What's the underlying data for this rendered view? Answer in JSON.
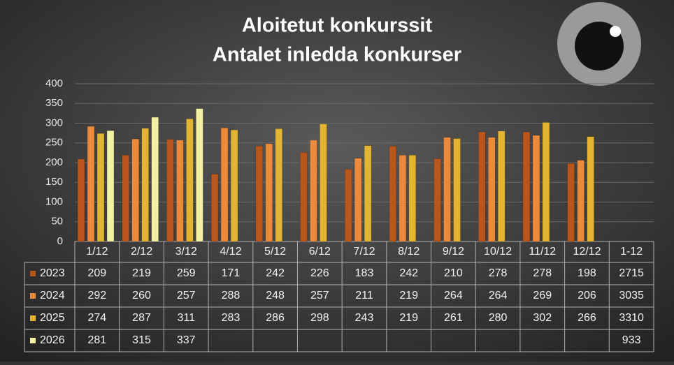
{
  "chart_data": {
    "type": "bar",
    "title": "Aloitetut konkurssit",
    "subtitle": "Antalet inledda konkurser",
    "categories": [
      "1/12",
      "2/12",
      "3/12",
      "4/12",
      "5/12",
      "6/12",
      "7/12",
      "8/12",
      "9/12",
      "10/12",
      "11/12",
      "12/12"
    ],
    "series": [
      {
        "name": "2023",
        "color": "#b8561c",
        "values": [
          209,
          219,
          259,
          171,
          242,
          226,
          183,
          242,
          210,
          278,
          278,
          198
        ]
      },
      {
        "name": "2024",
        "color": "#ec8a3c",
        "values": [
          292,
          260,
          257,
          288,
          248,
          257,
          211,
          219,
          264,
          264,
          269,
          206
        ]
      },
      {
        "name": "2025",
        "color": "#e2b432",
        "values": [
          274,
          287,
          311,
          283,
          286,
          298,
          243,
          219,
          261,
          280,
          302,
          266
        ]
      },
      {
        "name": "2026",
        "color": "#f2f0a2",
        "values": [
          281,
          315,
          337,
          null,
          null,
          null,
          null,
          null,
          null,
          null,
          null,
          null
        ]
      }
    ],
    "total_label": "1-12",
    "totals": [
      2715,
      3035,
      3310,
      933
    ],
    "ylim": [
      0,
      400
    ],
    "yticks": [
      0,
      50,
      100,
      150,
      200,
      250,
      300,
      350,
      400
    ],
    "grid": true
  }
}
